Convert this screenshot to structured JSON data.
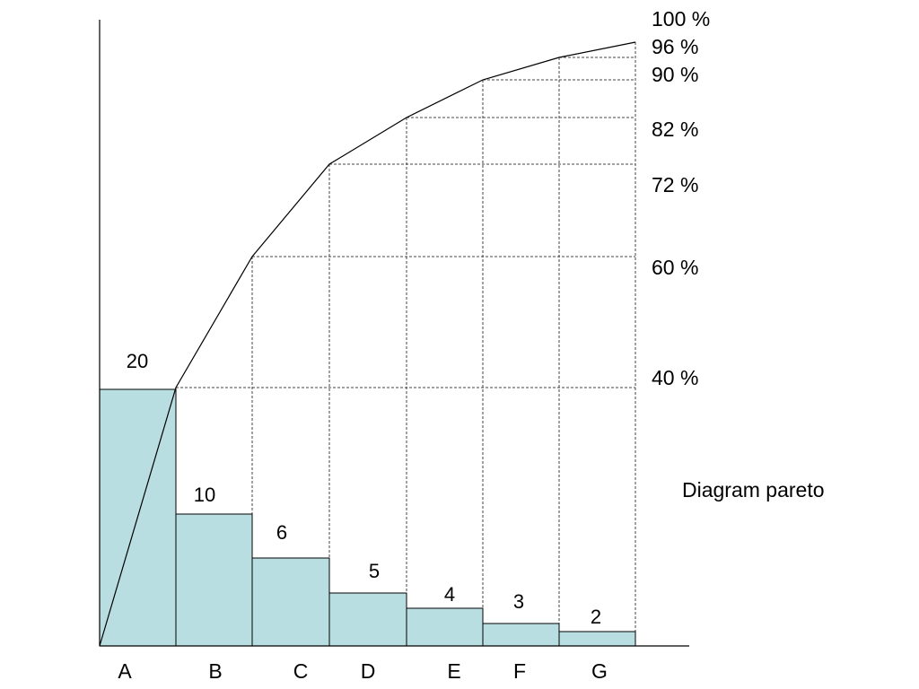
{
  "chart_data": {
    "type": "bar",
    "title": "Diagram pareto",
    "categories": [
      "A",
      "B",
      "C",
      "D",
      "E",
      "F",
      "G"
    ],
    "values": [
      20,
      10,
      6,
      5,
      4,
      3,
      2
    ],
    "value_labels": [
      "20",
      "10",
      "6",
      "5",
      "4",
      "3",
      "2"
    ],
    "cumulative_percent": [
      40,
      60,
      72,
      82,
      90,
      96,
      100
    ],
    "cumulative_labels": [
      "40 %",
      "60 %",
      "72 %",
      "82 %",
      "90 %",
      "96 %",
      "100 %"
    ],
    "xlabel": "",
    "ylabel": "",
    "grid": "dashed guide lines at cumulative points",
    "legend": "none"
  },
  "colors": {
    "bar_fill": "#b9dee2",
    "bar_stroke": "#000000",
    "line": "#000000",
    "guide": "#444444"
  }
}
